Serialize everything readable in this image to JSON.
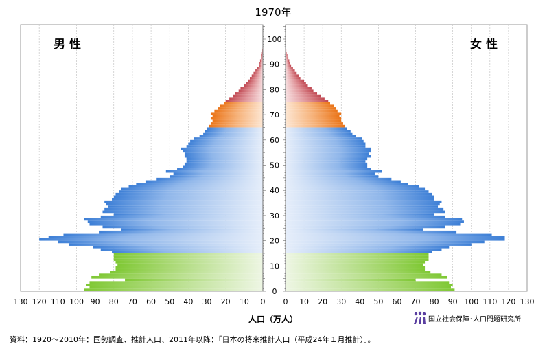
{
  "chart_data": {
    "type": "bar",
    "subtype": "population-pyramid",
    "title": "1970年",
    "xlabel": "人口（万人）",
    "male_label": "男 性",
    "female_label": "女 性",
    "x_ticks_left": [
      "130",
      "120",
      "110",
      "100",
      "90",
      "80",
      "70",
      "60",
      "50",
      "40",
      "30",
      "20",
      "10",
      "0"
    ],
    "x_ticks_right": [
      "0",
      "10",
      "20",
      "30",
      "40",
      "50",
      "60",
      "70",
      "80",
      "90",
      "100",
      "110",
      "120",
      "130"
    ],
    "y_ticks": [
      "0",
      "10",
      "20",
      "30",
      "40",
      "50",
      "60",
      "70",
      "80",
      "90",
      "100"
    ],
    "xlim": [
      0,
      130
    ],
    "ylim": [
      0,
      105
    ],
    "grid": true,
    "age_groups": [
      {
        "name": "0-14",
        "color": "#8fd14f"
      },
      {
        "name": "15-64",
        "color": "#4f8fdc"
      },
      {
        "name": "65-74",
        "color": "#ee8125"
      },
      {
        "name": "75+",
        "color": "#c9535b"
      }
    ],
    "ages": [
      0,
      1,
      2,
      3,
      4,
      5,
      6,
      7,
      8,
      9,
      10,
      11,
      12,
      13,
      14,
      15,
      16,
      17,
      18,
      19,
      20,
      21,
      22,
      23,
      24,
      25,
      26,
      27,
      28,
      29,
      30,
      31,
      32,
      33,
      34,
      35,
      36,
      37,
      38,
      39,
      40,
      41,
      42,
      43,
      44,
      45,
      46,
      47,
      48,
      49,
      50,
      51,
      52,
      53,
      54,
      55,
      56,
      57,
      58,
      59,
      60,
      61,
      62,
      63,
      64,
      65,
      66,
      67,
      68,
      69,
      70,
      71,
      72,
      73,
      74,
      75,
      76,
      77,
      78,
      79,
      80,
      81,
      82,
      83,
      84,
      85,
      86,
      87,
      88,
      89,
      90,
      91,
      92,
      93,
      94,
      95,
      96,
      97,
      98,
      99,
      100
    ],
    "male": [
      96,
      93,
      95,
      93,
      74,
      92,
      88,
      82,
      79,
      79,
      78,
      79,
      80,
      80,
      80,
      81,
      87,
      91,
      104,
      110,
      120,
      115,
      107,
      88,
      76,
      86,
      93,
      94,
      96,
      87,
      80,
      86,
      85,
      83,
      84,
      85,
      81,
      80,
      79,
      77,
      76,
      72,
      68,
      63,
      57,
      50,
      48,
      52,
      46,
      43,
      42,
      41,
      41,
      42,
      42,
      43,
      44,
      41,
      40,
      39,
      37,
      34,
      32,
      31,
      30,
      29,
      28,
      27,
      28,
      27,
      28,
      26,
      24,
      23,
      21,
      20,
      18,
      16,
      15,
      13,
      12,
      10,
      9,
      8,
      7,
      6,
      5,
      4,
      3,
      2,
      2,
      1.5,
      1,
      0.8,
      0.5,
      0.3,
      0.2,
      0.1,
      0.1,
      0.05,
      0.02
    ],
    "female": [
      91,
      89,
      90,
      88,
      70,
      87,
      84,
      78,
      75,
      75,
      74,
      75,
      77,
      77,
      77,
      79,
      84,
      88,
      100,
      107,
      118,
      118,
      111,
      92,
      74,
      86,
      94,
      96,
      95,
      86,
      80,
      86,
      85,
      82,
      83,
      84,
      80,
      80,
      79,
      77,
      75,
      72,
      66,
      62,
      57,
      50,
      48,
      52,
      46,
      44,
      44,
      43,
      44,
      46,
      45,
      46,
      46,
      43,
      43,
      42,
      41,
      38,
      36,
      35,
      33,
      32,
      31,
      30,
      30,
      29,
      30,
      28,
      27,
      26,
      24,
      23,
      21,
      19,
      17,
      15,
      14,
      12,
      11,
      10,
      8,
      7,
      6,
      5,
      4,
      3,
      2.5,
      2,
      1.5,
      1,
      0.6,
      0.4,
      0.2,
      0.1,
      0.1,
      0.05,
      0.02
    ]
  },
  "source_text": "資料：1920〜2010年：国勢調査、推計人口、2011年以降：「日本の将来推計人口（平成24年１月推計）」。",
  "logo_text": "国立社会保障･人口問題研究所",
  "colors": {
    "grid": "#bbbbbb",
    "axis": "#666666"
  }
}
